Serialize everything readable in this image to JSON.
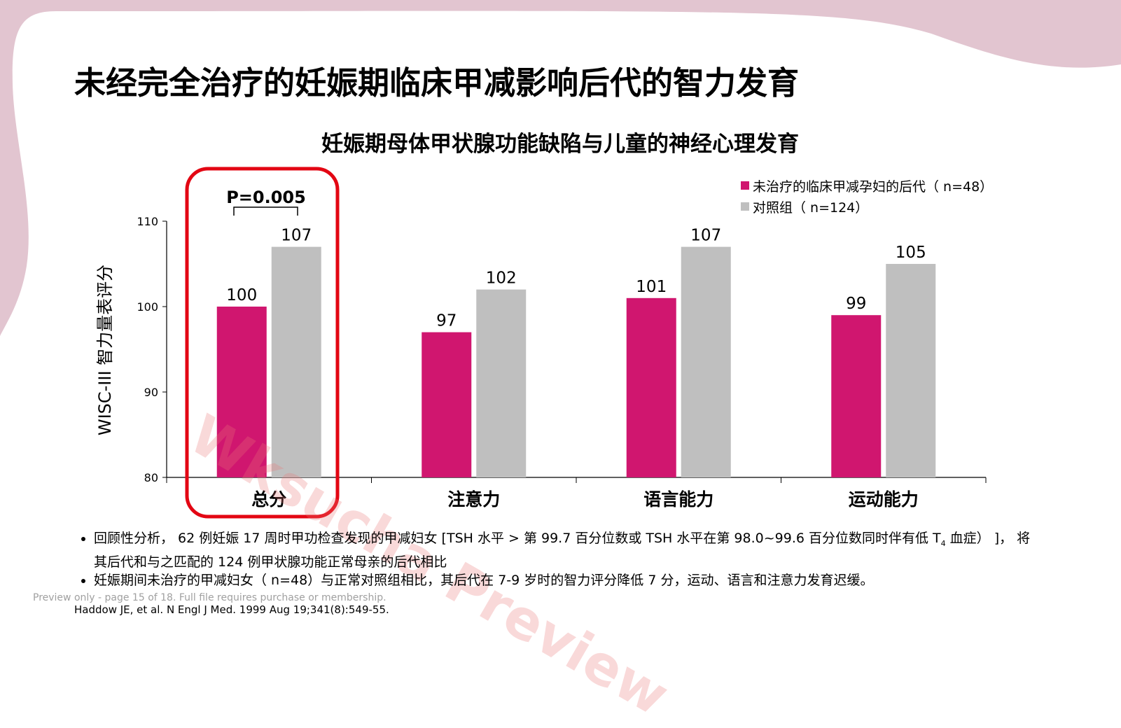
{
  "slide": {
    "title": "未经完全治疗的妊娠期临床甲减影响后代的智力发育"
  },
  "colors": {
    "series_untreated": "#d0166f",
    "series_control": "#bfbfbf",
    "highlight_box": "#e30613",
    "background_deco": "#e2c5d0"
  },
  "chart_data": {
    "type": "bar",
    "title": "妊娠期母体甲状腺功能缺陷与儿童的神经心理发育",
    "ylabel": "WISC-III 智力量表评分",
    "xlabel": "",
    "categories": [
      "总分",
      "注意力",
      "语言能力",
      "运动能力"
    ],
    "series": [
      {
        "name": "未治疗的临床甲减孕妇的后代（ n=48）",
        "values": [
          100,
          97,
          101,
          99
        ]
      },
      {
        "name": "对照组（ n=124）",
        "values": [
          107,
          102,
          107,
          105
        ]
      }
    ],
    "ylim": [
      80,
      110
    ],
    "yticks": [
      "80",
      "90",
      "100",
      "110"
    ],
    "legend_position": "top-right",
    "annotation": "P=0.005",
    "grid": false
  },
  "footnotes": {
    "bullet1_text": "回顾性分析， 62  例妊娠 17  周时甲功检查发现的甲减妇女 [TSH 水平 > 第 99.7  百分位数或 TSH  水平在第 98.0~99.6  百分位数同时伴有低 T",
    "bullet1_sub": "4",
    "bullet1_text2": "  血症） ]， 将其后代和与之匹配的 124  例甲状腺功能正常母亲的后代相比",
    "bullet2": "妊娠期间未治疗的甲减妇女（ n=48）与正常对照组相比，其后代在 7-9 岁时的智力评分降低 7 分，运动、语言和注意力发育迟缓。"
  },
  "preview_note": "Preview only - page 15 of 18. Full file requires purchase or membership.",
  "reference": "Haddow JE, et al. N Engl J Med. 1999 Aug 19;341(8):549-55.",
  "watermark": "Wksucha Preview"
}
